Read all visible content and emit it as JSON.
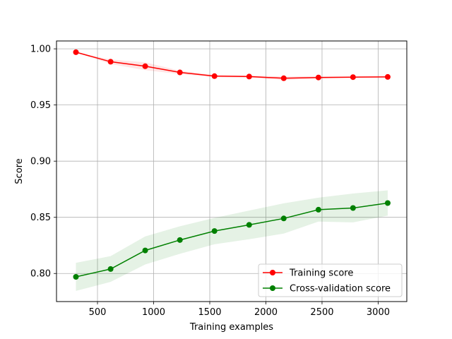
{
  "chart_data": {
    "type": "line",
    "title": "",
    "xlabel": "Training examples",
    "ylabel": "Score",
    "xlim": [
      135,
      3255
    ],
    "ylim": [
      0.775,
      1.007
    ],
    "xticks": [
      500,
      1000,
      1500,
      2000,
      2500,
      3000
    ],
    "yticks": [
      0.8,
      0.85,
      0.9,
      0.95,
      1.0
    ],
    "xtick_labels": [
      "500",
      "1000",
      "1500",
      "2000",
      "2500",
      "3000"
    ],
    "ytick_labels": [
      "0.80",
      "0.85",
      "0.90",
      "0.95",
      "1.00"
    ],
    "grid": true,
    "legend_position": "lower-right",
    "x": [
      308,
      617,
      925,
      1234,
      1542,
      1851,
      2159,
      2468,
      2776,
      3085
    ],
    "series": [
      {
        "name": "Training score",
        "color": "#ff0000",
        "band_color": "#ff0000",
        "values": [
          0.997,
          0.9885,
          0.9845,
          0.979,
          0.9757,
          0.9753,
          0.9738,
          0.9745,
          0.9748,
          0.975
        ],
        "lower": [
          0.997,
          0.9865,
          0.981,
          0.9775,
          0.9748,
          0.9743,
          0.9723,
          0.9735,
          0.9742,
          0.9744
        ],
        "upper": [
          0.997,
          0.9905,
          0.988,
          0.9805,
          0.9766,
          0.9763,
          0.9753,
          0.9755,
          0.9754,
          0.9756
        ]
      },
      {
        "name": "Cross-validation score",
        "color": "#008000",
        "band_color": "#008000",
        "values": [
          0.797,
          0.804,
          0.8205,
          0.8298,
          0.8378,
          0.8433,
          0.849,
          0.8568,
          0.8583,
          0.8627
        ],
        "lower": [
          0.7845,
          0.7925,
          0.808,
          0.8175,
          0.826,
          0.8305,
          0.8355,
          0.8462,
          0.8455,
          0.8515
        ],
        "upper": [
          0.8095,
          0.8155,
          0.833,
          0.842,
          0.8495,
          0.856,
          0.8625,
          0.8675,
          0.8712,
          0.874
        ]
      }
    ]
  }
}
